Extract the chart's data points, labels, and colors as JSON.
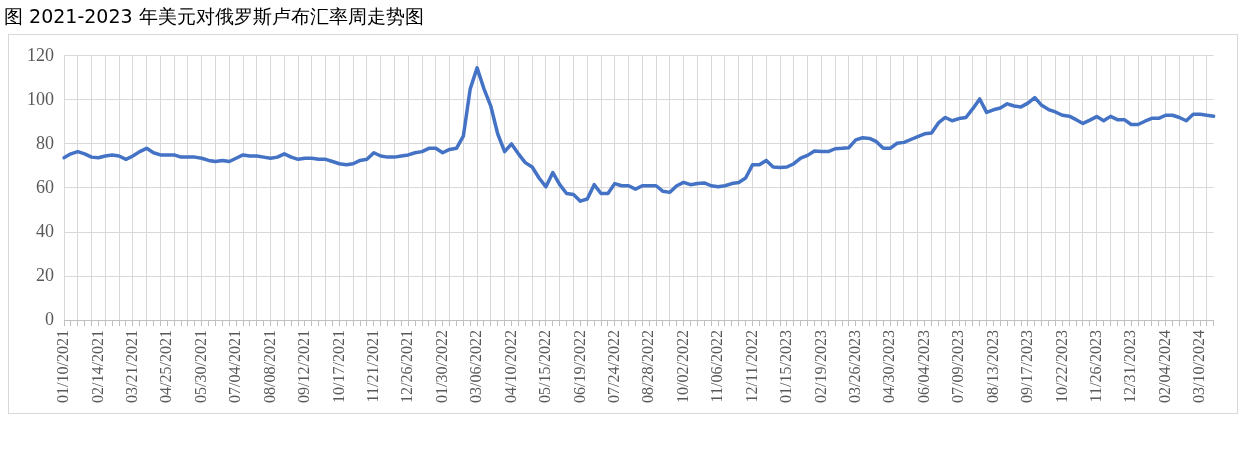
{
  "chart_data": {
    "type": "line",
    "title": "图 2021-2023 年美元对俄罗斯卢布汇率周走势图",
    "categories": [
      "01/10/2021",
      null,
      null,
      null,
      null,
      "02/14/2021",
      null,
      null,
      null,
      null,
      "03/21/2021",
      null,
      null,
      null,
      null,
      "04/25/2021",
      null,
      null,
      null,
      null,
      "05/30/2021",
      null,
      null,
      null,
      null,
      "07/04/2021",
      null,
      null,
      null,
      null,
      "08/08/2021",
      null,
      null,
      null,
      null,
      "09/12/2021",
      null,
      null,
      null,
      null,
      "10/17/2021",
      null,
      null,
      null,
      null,
      "11/21/2021",
      null,
      null,
      null,
      null,
      "12/26/2021",
      null,
      null,
      null,
      null,
      "01/30/2022",
      null,
      null,
      null,
      null,
      "03/06/2022",
      null,
      null,
      null,
      null,
      "04/10/2022",
      null,
      null,
      null,
      null,
      "05/15/2022",
      null,
      null,
      null,
      null,
      "06/19/2022",
      null,
      null,
      null,
      null,
      "07/24/2022",
      null,
      null,
      null,
      null,
      "08/28/2022",
      null,
      null,
      null,
      null,
      "10/02/2022",
      null,
      null,
      null,
      null,
      "11/06/2022",
      null,
      null,
      null,
      null,
      "12/11/2022",
      null,
      null,
      null,
      null,
      "01/15/2023",
      null,
      null,
      null,
      null,
      "02/19/2023",
      null,
      null,
      null,
      null,
      "03/26/2023",
      null,
      null,
      null,
      null,
      "04/30/2023",
      null,
      null,
      null,
      null,
      "06/04/2023",
      null,
      null,
      null,
      null,
      "07/09/2023",
      null,
      null,
      null,
      null,
      "08/13/2023",
      null,
      null,
      null,
      null,
      "09/17/2023",
      null,
      null,
      null,
      null,
      "10/22/2023",
      null,
      null,
      null,
      null,
      "11/26/2023",
      null,
      null,
      null,
      null,
      "12/31/2023",
      null,
      null,
      null,
      null,
      "02/04/2024",
      null,
      null,
      null,
      null,
      "03/10/2024",
      null,
      null
    ],
    "series": [
      {
        "color": "#4472c4",
        "values": [
          73.7,
          75.5,
          76.5,
          75.5,
          74,
          73.7,
          74.5,
          75,
          74.5,
          73,
          74.5,
          76.5,
          78,
          76,
          75,
          75,
          75,
          74,
          74,
          74,
          73.5,
          72.5,
          72,
          72.5,
          72,
          73.5,
          75,
          74.5,
          74.5,
          74,
          73.5,
          74,
          75.5,
          74,
          73,
          73.5,
          73.5,
          73,
          73,
          72,
          71,
          70.5,
          71,
          72.5,
          73,
          76,
          74.5,
          74,
          74,
          74.5,
          75,
          76,
          76.5,
          78,
          78,
          76,
          77.5,
          78,
          83.5,
          105,
          114.5,
          105,
          97,
          84.5,
          76.5,
          80,
          75.5,
          71.5,
          69.5,
          64.5,
          60.5,
          67,
          61.5,
          57.5,
          57,
          54,
          55,
          61.5,
          57.5,
          57.5,
          62,
          61,
          61,
          59.5,
          61,
          61,
          61,
          58.5,
          58,
          61,
          62.5,
          61.5,
          62,
          62.3,
          61,
          60.5,
          61,
          62,
          62.5,
          64.5,
          70.5,
          70.5,
          72.5,
          69.5,
          69.3,
          69.5,
          71,
          73.5,
          74.8,
          76.8,
          76.5,
          76.5,
          77.8,
          78,
          78.3,
          81.8,
          82.8,
          82.5,
          81,
          78,
          78,
          80.3,
          80.7,
          82,
          83.3,
          84.6,
          85,
          89.5,
          92,
          90.5,
          91.5,
          92,
          96,
          100.4,
          94.3,
          95.5,
          96.3,
          98.2,
          97.2,
          96.8,
          98.5,
          101,
          97.5,
          95.6,
          94.5,
          93,
          92.6,
          91,
          89.3,
          90.8,
          92.4,
          90.5,
          92.5,
          91,
          91,
          88.8,
          88.8,
          90.3,
          91.6,
          91.6,
          93,
          93,
          92,
          90.5,
          93.5,
          93.5,
          93,
          92.6
        ]
      }
    ],
    "ylim": [
      0,
      120
    ],
    "yticks": [
      0,
      20,
      40,
      60,
      80,
      100,
      120
    ],
    "grid": true,
    "legend": false,
    "marker": "none",
    "line_style": "solid"
  }
}
